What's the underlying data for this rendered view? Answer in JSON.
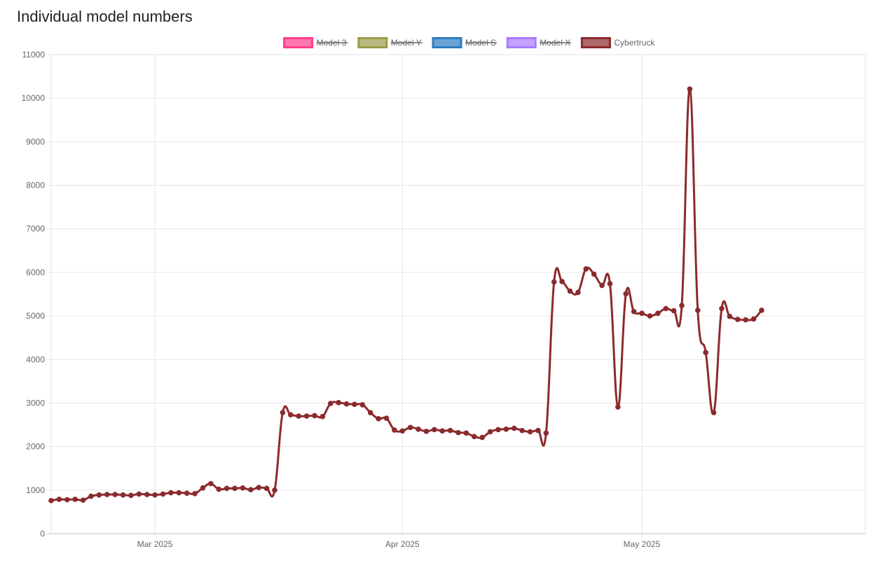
{
  "title": "Individual model numbers",
  "chart_data": {
    "type": "line",
    "title": "Individual model numbers",
    "x_start": "2025-02-16",
    "x_end": "2025-05-29",
    "x_ticks": [
      {
        "date": "2025-03-01",
        "label": "Mar 2025"
      },
      {
        "date": "2025-04-01",
        "label": "Apr 2025"
      },
      {
        "date": "2025-05-01",
        "label": "May 2025"
      }
    ],
    "ylim": [
      0,
      11000
    ],
    "y_ticks": [
      0,
      1000,
      2000,
      3000,
      4000,
      5000,
      6000,
      7000,
      8000,
      9000,
      10000,
      11000
    ],
    "grid": true,
    "legend_position": "top",
    "legend": [
      {
        "label": "Model 3",
        "color": "#ff3d8a",
        "hidden": true
      },
      {
        "label": "Model Y",
        "color": "#9a9a4a",
        "hidden": true
      },
      {
        "label": "Model S",
        "color": "#2b7cc0",
        "hidden": true
      },
      {
        "label": "Model X",
        "color": "#a77bff",
        "hidden": true
      },
      {
        "label": "Cybertruck",
        "color": "#8b2a2e",
        "hidden": false
      }
    ],
    "series": [
      {
        "name": "Cybertruck",
        "color": "#8b2a2e",
        "points": [
          [
            "2025-02-16",
            760
          ],
          [
            "2025-02-17",
            790
          ],
          [
            "2025-02-18",
            780
          ],
          [
            "2025-02-19",
            790
          ],
          [
            "2025-02-20",
            770
          ],
          [
            "2025-02-21",
            860
          ],
          [
            "2025-02-22",
            890
          ],
          [
            "2025-02-23",
            900
          ],
          [
            "2025-02-24",
            900
          ],
          [
            "2025-02-25",
            890
          ],
          [
            "2025-02-26",
            880
          ],
          [
            "2025-02-27",
            910
          ],
          [
            "2025-02-28",
            900
          ],
          [
            "2025-03-01",
            890
          ],
          [
            "2025-03-02",
            910
          ],
          [
            "2025-03-03",
            940
          ],
          [
            "2025-03-04",
            940
          ],
          [
            "2025-03-05",
            930
          ],
          [
            "2025-03-06",
            920
          ],
          [
            "2025-03-07",
            1050
          ],
          [
            "2025-03-08",
            1150
          ],
          [
            "2025-03-09",
            1020
          ],
          [
            "2025-03-10",
            1040
          ],
          [
            "2025-03-11",
            1040
          ],
          [
            "2025-03-12",
            1050
          ],
          [
            "2025-03-13",
            1010
          ],
          [
            "2025-03-14",
            1060
          ],
          [
            "2025-03-15",
            1040
          ],
          [
            "2025-03-16",
            1000
          ],
          [
            "2025-03-17",
            2780
          ],
          [
            "2025-03-18",
            2730
          ],
          [
            "2025-03-19",
            2700
          ],
          [
            "2025-03-20",
            2700
          ],
          [
            "2025-03-21",
            2710
          ],
          [
            "2025-03-22",
            2690
          ],
          [
            "2025-03-23",
            2990
          ],
          [
            "2025-03-24",
            3010
          ],
          [
            "2025-03-25",
            2980
          ],
          [
            "2025-03-26",
            2970
          ],
          [
            "2025-03-27",
            2960
          ],
          [
            "2025-03-28",
            2780
          ],
          [
            "2025-03-29",
            2640
          ],
          [
            "2025-03-30",
            2650
          ],
          [
            "2025-03-31",
            2380
          ],
          [
            "2025-04-01",
            2360
          ],
          [
            "2025-04-02",
            2440
          ],
          [
            "2025-04-03",
            2400
          ],
          [
            "2025-04-04",
            2350
          ],
          [
            "2025-04-05",
            2390
          ],
          [
            "2025-04-06",
            2360
          ],
          [
            "2025-04-07",
            2370
          ],
          [
            "2025-04-08",
            2320
          ],
          [
            "2025-04-09",
            2310
          ],
          [
            "2025-04-10",
            2230
          ],
          [
            "2025-04-11",
            2210
          ],
          [
            "2025-04-12",
            2340
          ],
          [
            "2025-04-13",
            2390
          ],
          [
            "2025-04-14",
            2400
          ],
          [
            "2025-04-15",
            2420
          ],
          [
            "2025-04-16",
            2370
          ],
          [
            "2025-04-17",
            2340
          ],
          [
            "2025-04-18",
            2370
          ],
          [
            "2025-04-19",
            2310
          ],
          [
            "2025-04-20",
            5780
          ],
          [
            "2025-04-21",
            5790
          ],
          [
            "2025-04-22",
            5570
          ],
          [
            "2025-04-23",
            5540
          ],
          [
            "2025-04-24",
            6080
          ],
          [
            "2025-04-25",
            5960
          ],
          [
            "2025-04-26",
            5700
          ],
          [
            "2025-04-27",
            5740
          ],
          [
            "2025-04-28",
            2910
          ],
          [
            "2025-04-29",
            5510
          ],
          [
            "2025-04-30",
            5100
          ],
          [
            "2025-05-01",
            5060
          ],
          [
            "2025-05-02",
            5000
          ],
          [
            "2025-05-03",
            5060
          ],
          [
            "2025-05-04",
            5170
          ],
          [
            "2025-05-05",
            5120
          ],
          [
            "2025-05-06",
            5240
          ],
          [
            "2025-05-07",
            10210
          ],
          [
            "2025-05-08",
            5130
          ],
          [
            "2025-05-09",
            4160
          ],
          [
            "2025-05-10",
            2780
          ],
          [
            "2025-05-11",
            5170
          ],
          [
            "2025-05-12",
            4990
          ],
          [
            "2025-05-13",
            4920
          ],
          [
            "2025-05-14",
            4910
          ],
          [
            "2025-05-15",
            4930
          ],
          [
            "2025-05-16",
            5130
          ]
        ]
      }
    ]
  }
}
